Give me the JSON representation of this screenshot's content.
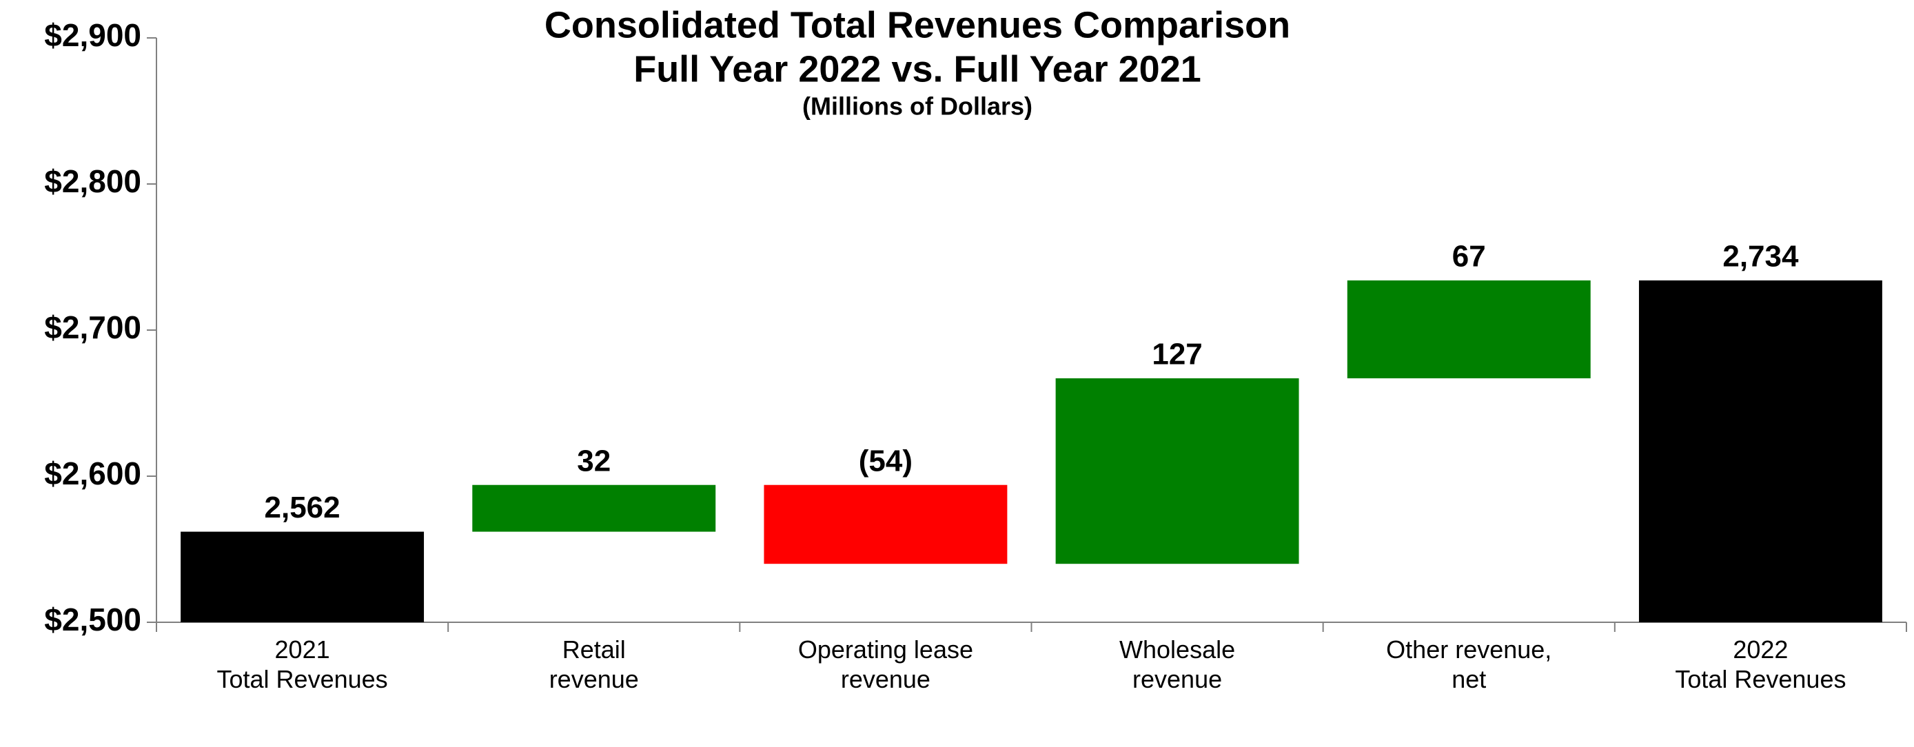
{
  "chart_data": {
    "type": "waterfall",
    "title": "Consolidated Total Revenues Comparison",
    "subtitle": "Full Year 2022 vs. Full Year 2021",
    "note": "(Millions of Dollars)",
    "categories": [
      [
        "2021",
        "Total Revenues"
      ],
      [
        "Retail",
        "revenue"
      ],
      [
        "Operating lease",
        "revenue"
      ],
      [
        "Wholesale",
        "revenue"
      ],
      [
        "Other revenue,",
        "net"
      ],
      [
        "2022",
        "Total Revenues"
      ]
    ],
    "measure": [
      "absolute",
      "relative",
      "relative",
      "relative",
      "relative",
      "absolute"
    ],
    "values": [
      2562,
      32,
      -54,
      127,
      67,
      2734
    ],
    "value_labels": [
      "2,562",
      "32",
      "(54)",
      "127",
      "67",
      "2,734"
    ],
    "colors": [
      "#000000",
      "#008000",
      "#ff0000",
      "#008000",
      "#008000",
      "#000000"
    ],
    "ylim": [
      2500,
      2900
    ],
    "yticks": [
      {
        "value": 2500,
        "label": "$2,500"
      },
      {
        "value": 2600,
        "label": "$2,600"
      },
      {
        "value": 2700,
        "label": "$2,700"
      },
      {
        "value": 2800,
        "label": "$2,800"
      },
      {
        "value": 2900,
        "label": "$2,900"
      }
    ],
    "grid": false
  }
}
